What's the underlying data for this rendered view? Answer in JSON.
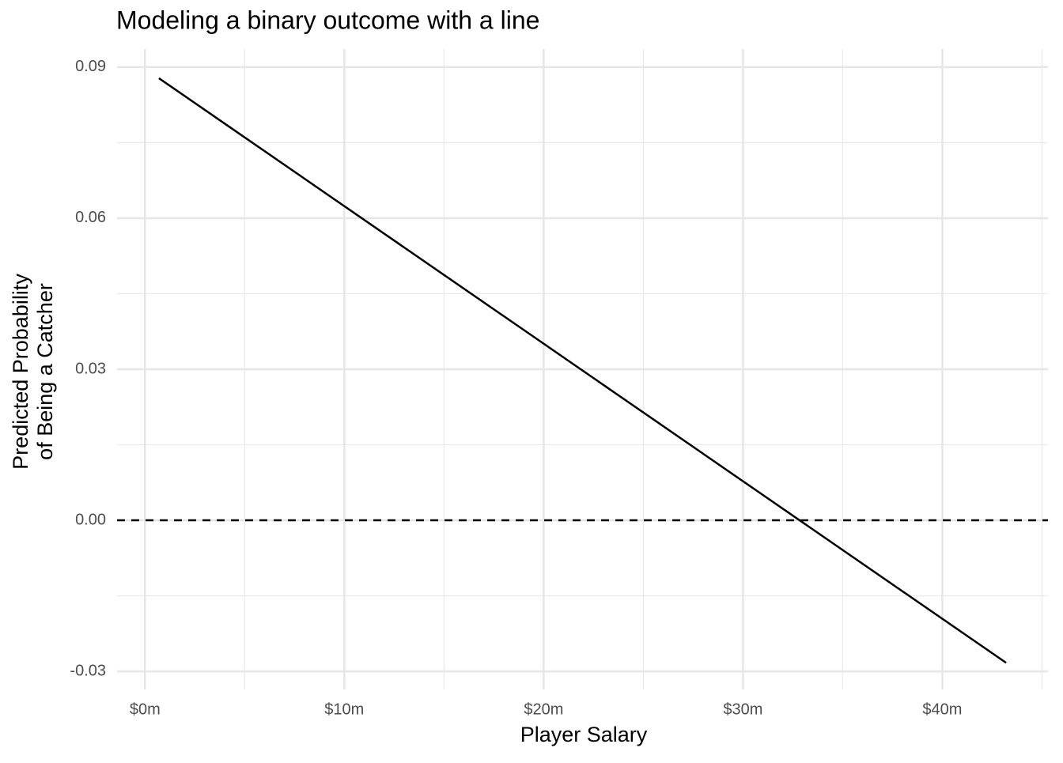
{
  "chart_data": {
    "type": "line",
    "title": "Modeling a binary outcome with a line",
    "xlabel": "Player Salary",
    "ylabel": [
      "Predicted Probability",
      "of Being a Catcher"
    ],
    "x": [
      0.7,
      43.2
    ],
    "series": [
      {
        "color": "#000000",
        "values": [
          0.0878,
          -0.0283
        ]
      }
    ],
    "xlim": [
      -1.4,
      45.3
    ],
    "ylim": [
      -0.0336,
      0.0936
    ],
    "xticks": [
      {
        "value": 0,
        "label": "$0m"
      },
      {
        "value": 10,
        "label": "$10m"
      },
      {
        "value": 20,
        "label": "$20m"
      },
      {
        "value": 30,
        "label": "$30m"
      },
      {
        "value": 40,
        "label": "$40m"
      }
    ],
    "yticks": [
      -0.03,
      {
        "value": 0,
        "label": "0.00"
      },
      0.03,
      0.06,
      0.09
    ],
    "xminor": [
      5,
      15,
      25,
      35,
      45
    ],
    "yminor": [
      -0.015,
      0.015,
      0.045,
      0.075
    ],
    "hline": {
      "value": 0,
      "style": "dashed",
      "color": "#000000"
    },
    "grid": true
  }
}
